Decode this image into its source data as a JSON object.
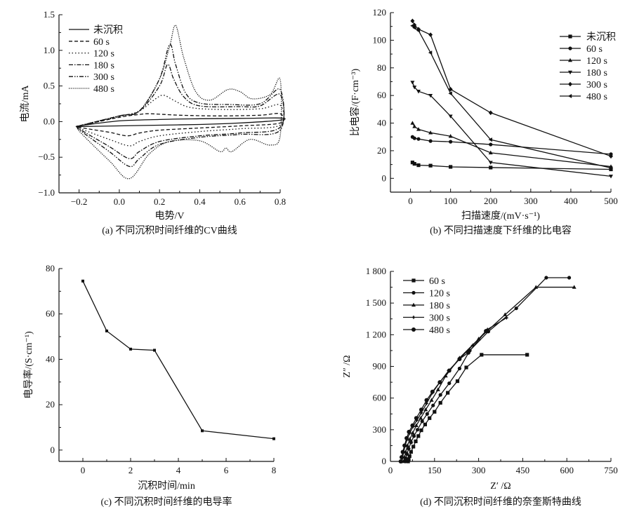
{
  "figure": {
    "panels": [
      "a",
      "b",
      "c",
      "d"
    ]
  },
  "chart_data": [
    {
      "id": "a",
      "type": "line",
      "caption": "(a) 不同沉积时间纤维的CV曲线",
      "title": "",
      "xlabel": "电势/V",
      "ylabel": "电流/mA",
      "xlim": [
        -0.3,
        0.8
      ],
      "ylim": [
        -1.0,
        1.5
      ],
      "xticks": [
        "−0.2",
        "0.0",
        "0.2",
        "0.4",
        "0.6",
        "0.8"
      ],
      "xtick_values": [
        -0.2,
        0.0,
        0.2,
        0.4,
        0.6,
        0.8
      ],
      "yticks": [
        "1.5",
        "1.0",
        "0.5",
        "0.0",
        "−0.5",
        "−1.0"
      ],
      "ytick_values": [
        1.5,
        1.0,
        0.5,
        0.0,
        -0.5,
        -1.0
      ],
      "legend_position": "top-left",
      "series": [
        {
          "name": "未沉积",
          "style": "solid",
          "anodic": [
            [
              -0.2,
              -0.06
            ],
            [
              0.0,
              0.01
            ],
            [
              0.2,
              0.03
            ],
            [
              0.4,
              0.04
            ],
            [
              0.6,
              0.045
            ],
            [
              0.8,
              0.05
            ]
          ],
          "cathodic": [
            [
              0.8,
              0.02
            ],
            [
              0.6,
              -0.02
            ],
            [
              0.4,
              -0.04
            ],
            [
              0.2,
              -0.05
            ],
            [
              0.0,
              -0.06
            ],
            [
              -0.2,
              -0.07
            ]
          ]
        },
        {
          "name": "60 s",
          "style": "dash",
          "anodic": [
            [
              -0.2,
              -0.06
            ],
            [
              0.0,
              0.06
            ],
            [
              0.1,
              0.1
            ],
            [
              0.15,
              0.11
            ],
            [
              0.3,
              0.09
            ],
            [
              0.5,
              0.08
            ],
            [
              0.7,
              0.09
            ],
            [
              0.8,
              0.11
            ]
          ],
          "cathodic": [
            [
              0.8,
              -0.02
            ],
            [
              0.6,
              -0.06
            ],
            [
              0.4,
              -0.09
            ],
            [
              0.2,
              -0.12
            ],
            [
              0.1,
              -0.16
            ],
            [
              0.04,
              -0.2
            ],
            [
              -0.05,
              -0.15
            ],
            [
              -0.2,
              -0.08
            ]
          ]
        },
        {
          "name": "120 s",
          "style": "dot",
          "anodic": [
            [
              -0.2,
              -0.06
            ],
            [
              0.0,
              0.07
            ],
            [
              0.1,
              0.15
            ],
            [
              0.18,
              0.32
            ],
            [
              0.22,
              0.37
            ],
            [
              0.27,
              0.3
            ],
            [
              0.35,
              0.2
            ],
            [
              0.5,
              0.17
            ],
            [
              0.7,
              0.18
            ],
            [
              0.8,
              0.23
            ]
          ],
          "cathodic": [
            [
              0.8,
              -0.05
            ],
            [
              0.6,
              -0.1
            ],
            [
              0.4,
              -0.14
            ],
            [
              0.2,
              -0.2
            ],
            [
              0.1,
              -0.28
            ],
            [
              0.05,
              -0.34
            ],
            [
              -0.05,
              -0.25
            ],
            [
              -0.2,
              -0.09
            ]
          ]
        },
        {
          "name": "180 s",
          "style": "dashdot",
          "anodic": [
            [
              -0.2,
              -0.06
            ],
            [
              0.0,
              0.08
            ],
            [
              0.1,
              0.15
            ],
            [
              0.2,
              0.5
            ],
            [
              0.24,
              0.8
            ],
            [
              0.27,
              0.6
            ],
            [
              0.32,
              0.35
            ],
            [
              0.4,
              0.22
            ],
            [
              0.6,
              0.21
            ],
            [
              0.7,
              0.22
            ],
            [
              0.8,
              0.38
            ]
          ],
          "cathodic": [
            [
              0.8,
              -0.08
            ],
            [
              0.6,
              -0.16
            ],
            [
              0.4,
              -0.2
            ],
            [
              0.2,
              -0.28
            ],
            [
              0.1,
              -0.42
            ],
            [
              0.05,
              -0.52
            ],
            [
              -0.05,
              -0.35
            ],
            [
              -0.2,
              -0.1
            ]
          ]
        },
        {
          "name": "300 s",
          "style": "dashdotdot",
          "anodic": [
            [
              -0.2,
              -0.06
            ],
            [
              0.0,
              0.08
            ],
            [
              0.1,
              0.15
            ],
            [
              0.2,
              0.6
            ],
            [
              0.25,
              1.08
            ],
            [
              0.28,
              0.8
            ],
            [
              0.33,
              0.4
            ],
            [
              0.4,
              0.26
            ],
            [
              0.55,
              0.24
            ],
            [
              0.7,
              0.25
            ],
            [
              0.8,
              0.45
            ]
          ],
          "cathodic": [
            [
              0.8,
              -0.12
            ],
            [
              0.6,
              -0.18
            ],
            [
              0.4,
              -0.22
            ],
            [
              0.2,
              -0.32
            ],
            [
              0.1,
              -0.52
            ],
            [
              0.05,
              -0.63
            ],
            [
              -0.05,
              -0.42
            ],
            [
              -0.2,
              -0.11
            ]
          ]
        },
        {
          "name": "480 s",
          "style": "fine-dot",
          "anodic": [
            [
              -0.2,
              -0.06
            ],
            [
              0.0,
              0.08
            ],
            [
              0.1,
              0.15
            ],
            [
              0.2,
              0.6
            ],
            [
              0.25,
              1.05
            ],
            [
              0.28,
              1.35
            ],
            [
              0.32,
              0.9
            ],
            [
              0.38,
              0.42
            ],
            [
              0.45,
              0.3
            ],
            [
              0.54,
              0.45
            ],
            [
              0.6,
              0.42
            ],
            [
              0.66,
              0.32
            ],
            [
              0.75,
              0.38
            ],
            [
              0.8,
              0.59
            ]
          ],
          "cathodic": [
            [
              0.8,
              -0.2
            ],
            [
              0.75,
              -0.33
            ],
            [
              0.65,
              -0.25
            ],
            [
              0.56,
              -0.42
            ],
            [
              0.53,
              -0.37
            ],
            [
              0.5,
              -0.42
            ],
            [
              0.4,
              -0.27
            ],
            [
              0.25,
              -0.28
            ],
            [
              0.15,
              -0.45
            ],
            [
              0.05,
              -0.8
            ],
            [
              -0.05,
              -0.55
            ],
            [
              -0.2,
              -0.13
            ]
          ]
        }
      ]
    },
    {
      "id": "b",
      "type": "line",
      "caption": "(b) 不同扫描速度下纤维的比电容",
      "title": "",
      "xlabel": "扫描速度/(mV·s⁻¹)",
      "ylabel": "比电容/(F·cm⁻³)",
      "xlim": [
        -50,
        500
      ],
      "ylim": [
        -10,
        120
      ],
      "xticks": [
        "0",
        "100",
        "200",
        "300",
        "400",
        "500"
      ],
      "xtick_values": [
        0,
        100,
        200,
        300,
        400,
        500
      ],
      "yticks": [
        "120",
        "100",
        "80",
        "60",
        "40",
        "20",
        "0"
      ],
      "ytick_values": [
        120,
        100,
        80,
        60,
        40,
        20,
        0
      ],
      "legend_position": "top-right",
      "x": [
        5,
        10,
        20,
        50,
        100,
        200,
        500
      ],
      "series": [
        {
          "name": "未沉积",
          "marker": "square",
          "values": [
            11.5,
            10.5,
            9.5,
            9.2,
            8.3,
            7.8,
            6.5
          ]
        },
        {
          "name": "60 s",
          "marker": "circle",
          "values": [
            30,
            29,
            28.5,
            27,
            26.5,
            24.5,
            17.5
          ]
        },
        {
          "name": "120 s",
          "marker": "triangle-up",
          "values": [
            40,
            37.5,
            35.5,
            33,
            30.5,
            18.5,
            8.5
          ]
        },
        {
          "name": "180 s",
          "marker": "triangle-down",
          "values": [
            69.5,
            66,
            63,
            60,
            45,
            11.5,
            1.5
          ]
        },
        {
          "name": "300 s",
          "marker": "diamond",
          "values": [
            114,
            111,
            108,
            104,
            64.5,
            47.5,
            16
          ]
        },
        {
          "name": "480 s",
          "marker": "triangle-left",
          "values": [
            110.5,
            109,
            107,
            91,
            61.5,
            28,
            7.5
          ]
        }
      ]
    },
    {
      "id": "c",
      "type": "line",
      "caption": "(c) 不同沉积时间纤维的电导率",
      "title": "",
      "xlabel": "沉积时间/min",
      "ylabel": "电导率/(S·cm⁻¹)",
      "xlim": [
        -1,
        8
      ],
      "ylim": [
        -5,
        80
      ],
      "xticks": [
        "0",
        "2",
        "4",
        "6",
        "8"
      ],
      "xtick_values": [
        0,
        2,
        4,
        6,
        8
      ],
      "yticks": [
        "80",
        "60",
        "40",
        "20",
        "0"
      ],
      "ytick_values": [
        80,
        60,
        40,
        20,
        0
      ],
      "series": [
        {
          "name": "电导率",
          "marker": "square",
          "x": [
            0,
            1,
            2,
            3,
            5,
            8
          ],
          "values": [
            74.5,
            52.5,
            44.5,
            44,
            8.5,
            5
          ]
        }
      ]
    },
    {
      "id": "d",
      "type": "scatter",
      "caption": "(d) 不同沉积时间纤维的奈奎斯特曲线",
      "title": "",
      "xlabel": "Z′ /Ω",
      "ylabel": "Z″ /Ω",
      "xlim": [
        0,
        750
      ],
      "ylim": [
        0,
        1800
      ],
      "xticks": [
        "0",
        "150",
        "300",
        "450",
        "600",
        "750"
      ],
      "xtick_values": [
        0,
        150,
        300,
        450,
        600,
        750
      ],
      "yticks": [
        "1 800",
        "1 500",
        "1 200",
        "900",
        "600",
        "300",
        "0"
      ],
      "ytick_values": [
        1800,
        1500,
        1200,
        900,
        600,
        300,
        0
      ],
      "legend_position": "top-left",
      "series": [
        {
          "name": "60 s",
          "marker": "square",
          "points": [
            [
              60,
              0
            ],
            [
              62,
              20
            ],
            [
              65,
              50
            ],
            [
              70,
              90
            ],
            [
              78,
              140
            ],
            [
              86,
              190
            ],
            [
              95,
              240
            ],
            [
              105,
              295
            ],
            [
              118,
              350
            ],
            [
              133,
              410
            ],
            [
              150,
              470
            ],
            [
              170,
              555
            ],
            [
              195,
              650
            ],
            [
              228,
              760
            ],
            [
              258,
              890
            ],
            [
              310,
              1010
            ],
            [
              465,
              1010
            ]
          ]
        },
        {
          "name": "120 s",
          "marker": "circle",
          "points": [
            [
              50,
              0
            ],
            [
              52,
              30
            ],
            [
              56,
              70
            ],
            [
              62,
              120
            ],
            [
              70,
              180
            ],
            [
              80,
              240
            ],
            [
              92,
              300
            ],
            [
              108,
              380
            ],
            [
              125,
              450
            ],
            [
              145,
              530
            ],
            [
              170,
              630
            ],
            [
              200,
              740
            ],
            [
              235,
              880
            ],
            [
              270,
              1050
            ],
            [
              333,
              1230
            ],
            [
              428,
              1450
            ],
            [
              530,
              1740
            ],
            [
              608,
              1740
            ]
          ]
        },
        {
          "name": "180 s",
          "marker": "triangle-up",
          "points": [
            [
              45,
              0
            ],
            [
              48,
              40
            ],
            [
              52,
              90
            ],
            [
              58,
              150
            ],
            [
              66,
              210
            ],
            [
              76,
              270
            ],
            [
              88,
              340
            ],
            [
              103,
              410
            ],
            [
              120,
              490
            ],
            [
              140,
              580
            ],
            [
              162,
              680
            ],
            [
              188,
              810
            ],
            [
              235,
              980
            ],
            [
              300,
              1160
            ],
            [
              390,
              1390
            ],
            [
              495,
              1650
            ],
            [
              625,
              1650
            ]
          ]
        },
        {
          "name": "300 s",
          "marker": "star",
          "points": [
            [
              40,
              0
            ],
            [
              42,
              40
            ],
            [
              45,
              90
            ],
            [
              50,
              150
            ],
            [
              57,
              210
            ],
            [
              66,
              270
            ],
            [
              77,
              330
            ],
            [
              90,
              390
            ],
            [
              105,
              460
            ],
            [
              123,
              550
            ],
            [
              143,
              650
            ],
            [
              168,
              750
            ],
            [
              198,
              860
            ],
            [
              235,
              970
            ],
            [
              280,
              1100
            ],
            [
              330,
              1250
            ],
            [
              395,
              1360
            ]
          ]
        },
        {
          "name": "480 s",
          "marker": "circle-large",
          "points": [
            [
              35,
              0
            ],
            [
              38,
              40
            ],
            [
              42,
              90
            ],
            [
              48,
              150
            ],
            [
              55,
              220
            ],
            [
              63,
              280
            ],
            [
              75,
              340
            ],
            [
              88,
              410
            ],
            [
              105,
              490
            ],
            [
              123,
              580
            ],
            [
              143,
              660
            ],
            [
              168,
              750
            ],
            [
              200,
              860
            ],
            [
              235,
              970
            ],
            [
              265,
              1030
            ],
            [
              325,
              1235
            ]
          ]
        }
      ]
    }
  ]
}
